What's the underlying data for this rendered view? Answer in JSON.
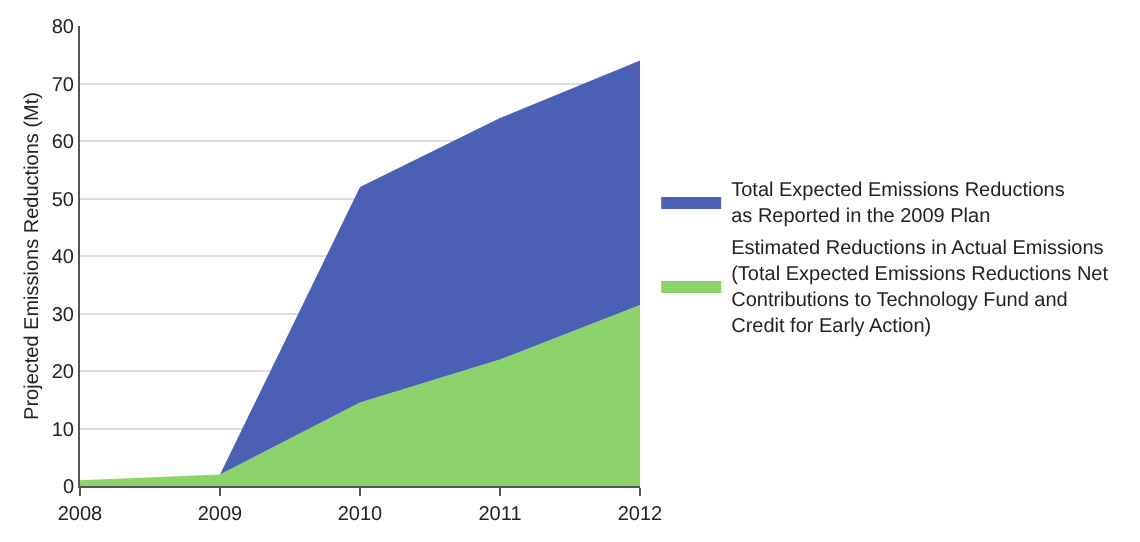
{
  "chart_data": {
    "type": "area",
    "stacked": true,
    "ylabel": "Projected Emissions Reductions (Mt)",
    "x": [
      2008,
      2009,
      2010,
      2011,
      2012
    ],
    "xlim": [
      2008,
      2012
    ],
    "xticks": [
      2008,
      2009,
      2010,
      2011,
      2012
    ],
    "ylim": [
      0,
      80
    ],
    "yticks": [
      0,
      10,
      20,
      30,
      40,
      50,
      60,
      70,
      80
    ],
    "grid": "y",
    "legend": "right",
    "series": [
      {
        "name": "Estimated Reductions in Actual Emissions\n(Total Expected Emissions Reductions Net\nContributions to Technology Fund and\nCredit for Early Action)",
        "color": "#8dd36b",
        "values": [
          1,
          2,
          14.5,
          22,
          31.5
        ]
      },
      {
        "name": "Total Expected Emissions Reductions\nas Reported in the 2009 Plan",
        "color": "#4b5fb4",
        "values": [
          0,
          0,
          37.5,
          42,
          42.5
        ]
      }
    ]
  }
}
